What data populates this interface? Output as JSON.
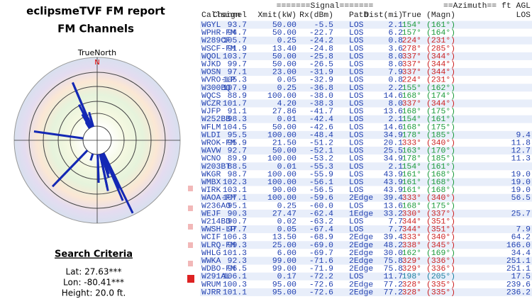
{
  "header": {
    "title": "eclipsmeTVF FM report",
    "subtitle": "FM Channels"
  },
  "compass": {
    "label": "TrueNorth",
    "north": "N"
  },
  "search": {
    "title": "Search Criteria",
    "lat": "Lat: 27.63***",
    "lon": "Lon: -80.41***",
    "height": "Height: 20.0 ft."
  },
  "table": {
    "header_top": [
      "=======Signal=======",
      "==Azimuth== ft AGL"
    ],
    "columns": [
      "Callsign",
      "Channel",
      "Xmit(kW)",
      "Rx(dBm)",
      "Path",
      "Dist(mi)",
      "True",
      "(Magn)",
      "LOS"
    ],
    "rows": [
      [
        "WGYL",
        "93.7",
        "50.00",
        "-5.5",
        "LOS",
        "2.1",
        "154°",
        "(161°)",
        null
      ],
      [
        "WPHR-FM",
        "94.7",
        "50.00",
        "-22.7",
        "LOS",
        "6.2",
        "157°",
        "(164°)",
        null
      ],
      [
        "W289CF",
        "105.7",
        "0.25",
        "-24.2",
        "LOS",
        "0.8",
        "224°",
        "(231°)",
        null
      ],
      [
        "WSCF-FM",
        "91.9",
        "13.40",
        "-24.8",
        "LOS",
        "3.6",
        "278°",
        "(285°)",
        null
      ],
      [
        "WQOL",
        "103.7",
        "50.00",
        "-25.8",
        "LOS",
        "8.0",
        "337°",
        "(344°)",
        null
      ],
      [
        "WJKD",
        "99.7",
        "50.00",
        "-26.5",
        "LOS",
        "8.0",
        "337°",
        "(344°)",
        null
      ],
      [
        "WOSN",
        "97.1",
        "23.00",
        "-31.9",
        "LOS",
        "7.9",
        "337°",
        "(344°)",
        null
      ],
      [
        "WVRO-LP",
        "105.3",
        "0.05",
        "-32.9",
        "LOS",
        "0.8",
        "224°",
        "(231°)",
        null
      ],
      [
        "W300BQ",
        "107.9",
        "0.25",
        "-36.8",
        "LOS",
        "2.2",
        "155°",
        "(162°)",
        null
      ],
      [
        "WQCS",
        "88.9",
        "100.00",
        "-38.0",
        "LOS",
        "14.6",
        "168°",
        "(174°)",
        null
      ],
      [
        "WCZR",
        "101.7",
        "4.20",
        "-38.3",
        "LOS",
        "8.0",
        "337°",
        "(344°)",
        null
      ],
      [
        "WJFP",
        "91.1",
        "27.86",
        "-41.7",
        "LOS",
        "13.6",
        "168°",
        "(175°)",
        null
      ],
      [
        "W252BB",
        "98.3",
        "0.01",
        "-42.4",
        "LOS",
        "2.1",
        "154°",
        "(161°)",
        null
      ],
      [
        "WFLM",
        "104.5",
        "50.00",
        "-42.6",
        "LOS",
        "14.6",
        "168°",
        "(175°)",
        null
      ],
      [
        "WLDI",
        "95.5",
        "100.00",
        "-48.4",
        "LOS",
        "34.9",
        "178°",
        "(185°)",
        "9.4"
      ],
      [
        "WROK-FM",
        "95.9",
        "21.50",
        "-51.2",
        "LOS",
        "20.1",
        "333°",
        "(340°)",
        "11.8"
      ],
      [
        "WAVW",
        "92.7",
        "50.00",
        "-52.1",
        "LOS",
        "25.5",
        "163°",
        "(170°)",
        "12.7"
      ],
      [
        "WCNO",
        "89.9",
        "100.00",
        "-53.2",
        "LOS",
        "34.9",
        "178°",
        "(185°)",
        "11.3"
      ],
      [
        "W203BT",
        "88.5",
        "0.01",
        "-55.3",
        "LOS",
        "2.1",
        "154°",
        "(161°)",
        null
      ],
      [
        "WKGR",
        "98.7",
        "100.00",
        "-55.9",
        "LOS",
        "43.9",
        "161°",
        "(168°)",
        "19.0"
      ],
      [
        "WMBX",
        "102.3",
        "100.00",
        "-56.1",
        "LOS",
        "43.9",
        "161°",
        "(168°)",
        "19.0"
      ],
      [
        "WIRK",
        "103.1",
        "90.00",
        "-56.5",
        "LOS",
        "43.9",
        "161°",
        "(168°)",
        "19.0"
      ],
      [
        "WAOA-FM",
        "107.1",
        "100.00",
        "-59.6",
        "2Edge",
        "39.4",
        "333°",
        "(340°)",
        "56.5"
      ],
      [
        "W236AO",
        "95.1",
        "0.25",
        "-60.0",
        "LOS",
        "13.6",
        "168°",
        "(175°)",
        null
      ],
      [
        "WEJF",
        "90.3",
        "27.47",
        "-62.4",
        "1Edge",
        "33.2",
        "330°",
        "(337°)",
        "25.7"
      ],
      [
        "W214BD",
        "90.7",
        "0.02",
        "-63.2",
        "LOS",
        "7.7",
        "344°",
        "(351°)",
        null
      ],
      [
        "WWSH-LP",
        "97.7",
        "0.05",
        "-67.4",
        "LOS",
        "7.7",
        "344°",
        "(351°)",
        "7.9"
      ],
      [
        "WCIF",
        "106.3",
        "13.50",
        "-68.9",
        "2Edge",
        "39.4",
        "333°",
        "(340°)",
        "64.2"
      ],
      [
        "WLRQ-FM",
        "99.3",
        "25.00",
        "-69.0",
        "2Edge",
        "48.2",
        "338°",
        "(345°)",
        "166.0"
      ],
      [
        "WHLG",
        "101.3",
        "6.00",
        "-69.7",
        "2Edge",
        "30.0",
        "162°",
        "(169°)",
        "34.4"
      ],
      [
        "WWKA",
        "92.3",
        "99.00",
        "-71.6",
        "2Edge",
        "75.8",
        "329°",
        "(336°)",
        "251.1"
      ],
      [
        "WDBO-FM",
        "96.5",
        "99.00",
        "-71.9",
        "2Edge",
        "75.8",
        "329°",
        "(336°)",
        "251.1"
      ],
      [
        "W291AL",
        "106.1",
        "0.17",
        "-72.2",
        "LOS",
        "11.7",
        "198°",
        "(205°)",
        "17.5"
      ],
      [
        "WRUM",
        "100.3",
        "95.00",
        "-72.6",
        "2Edge",
        "77.2",
        "328°",
        "(335°)",
        "239.6"
      ],
      [
        "WJRR",
        "101.1",
        "95.00",
        "-72.6",
        "2Edge",
        "77.2",
        "328°",
        "(335°)",
        "236.2"
      ]
    ]
  }
}
